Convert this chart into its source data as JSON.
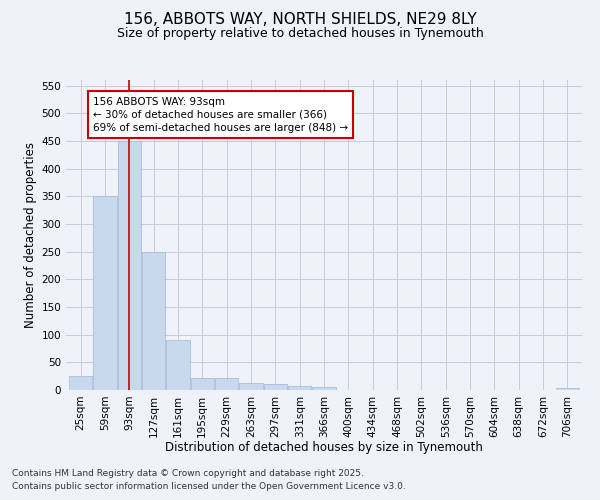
{
  "title": "156, ABBOTS WAY, NORTH SHIELDS, NE29 8LY",
  "subtitle": "Size of property relative to detached houses in Tynemouth",
  "xlabel": "Distribution of detached houses by size in Tynemouth",
  "ylabel": "Number of detached properties",
  "categories": [
    "25sqm",
    "59sqm",
    "93sqm",
    "127sqm",
    "161sqm",
    "195sqm",
    "229sqm",
    "263sqm",
    "297sqm",
    "331sqm",
    "366sqm",
    "400sqm",
    "434sqm",
    "468sqm",
    "502sqm",
    "536sqm",
    "570sqm",
    "604sqm",
    "638sqm",
    "672sqm",
    "706sqm"
  ],
  "values": [
    25,
    350,
    450,
    250,
    90,
    22,
    22,
    12,
    10,
    8,
    5,
    0,
    0,
    0,
    0,
    0,
    0,
    0,
    0,
    0,
    4
  ],
  "bar_color": "#c9d9ed",
  "bar_edge_color": "#a0b8d8",
  "vline_x": 2,
  "vline_color": "#cc0000",
  "annotation_line1": "156 ABBOTS WAY: 93sqm",
  "annotation_line2": "← 30% of detached houses are smaller (366)",
  "annotation_line3": "69% of semi-detached houses are larger (848) →",
  "annotation_box_color": "#ffffff",
  "annotation_box_edge": "#cc0000",
  "footer_line1": "Contains HM Land Registry data © Crown copyright and database right 2025.",
  "footer_line2": "Contains public sector information licensed under the Open Government Licence v3.0.",
  "ylim": [
    0,
    560
  ],
  "yticks": [
    0,
    50,
    100,
    150,
    200,
    250,
    300,
    350,
    400,
    450,
    500,
    550
  ],
  "background_color": "#eef2f9",
  "grid_color": "#c8ccd8",
  "title_fontsize": 11,
  "subtitle_fontsize": 9,
  "axis_label_fontsize": 8.5,
  "tick_fontsize": 7.5,
  "annotation_fontsize": 7.5,
  "footer_fontsize": 6.5
}
